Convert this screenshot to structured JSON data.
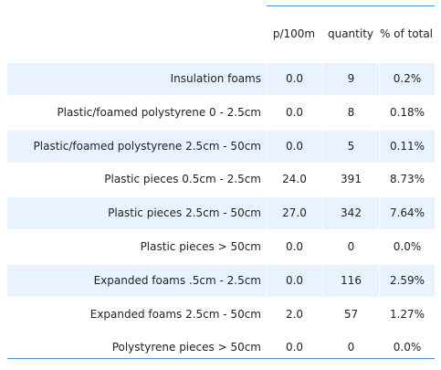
{
  "table": {
    "columns": {
      "p100m": "p/100m",
      "quantity": "quantity",
      "pct_total": "% of total"
    },
    "rows": [
      {
        "label": "Insulation foams",
        "p100m": "0.0",
        "quantity": "9",
        "pct_total": "0.2%"
      },
      {
        "label": "Plastic/foamed polystyrene 0 - 2.5cm",
        "p100m": "0.0",
        "quantity": "8",
        "pct_total": "0.18%"
      },
      {
        "label": "Plastic/foamed polystyrene 2.5cm - 50cm",
        "p100m": "0.0",
        "quantity": "5",
        "pct_total": "0.11%"
      },
      {
        "label": "Plastic pieces 0.5cm - 2.5cm",
        "p100m": "24.0",
        "quantity": "391",
        "pct_total": "8.73%"
      },
      {
        "label": "Plastic pieces 2.5cm - 50cm",
        "p100m": "27.0",
        "quantity": "342",
        "pct_total": "7.64%"
      },
      {
        "label": "Plastic pieces > 50cm",
        "p100m": "0.0",
        "quantity": "0",
        "pct_total": "0.0%"
      },
      {
        "label": "Expanded foams .5cm - 2.5cm",
        "p100m": "0.0",
        "quantity": "116",
        "pct_total": "2.59%"
      },
      {
        "label": "Expanded foams 2.5cm - 50cm",
        "p100m": "2.0",
        "quantity": "57",
        "pct_total": "1.27%"
      },
      {
        "label": "Polystyrene pieces > 50cm",
        "p100m": "0.0",
        "quantity": "0",
        "pct_total": "0.0%"
      }
    ]
  },
  "colors": {
    "row_shade": "#e8f3ff",
    "rule": "#4a90d9",
    "text": "#222222"
  }
}
